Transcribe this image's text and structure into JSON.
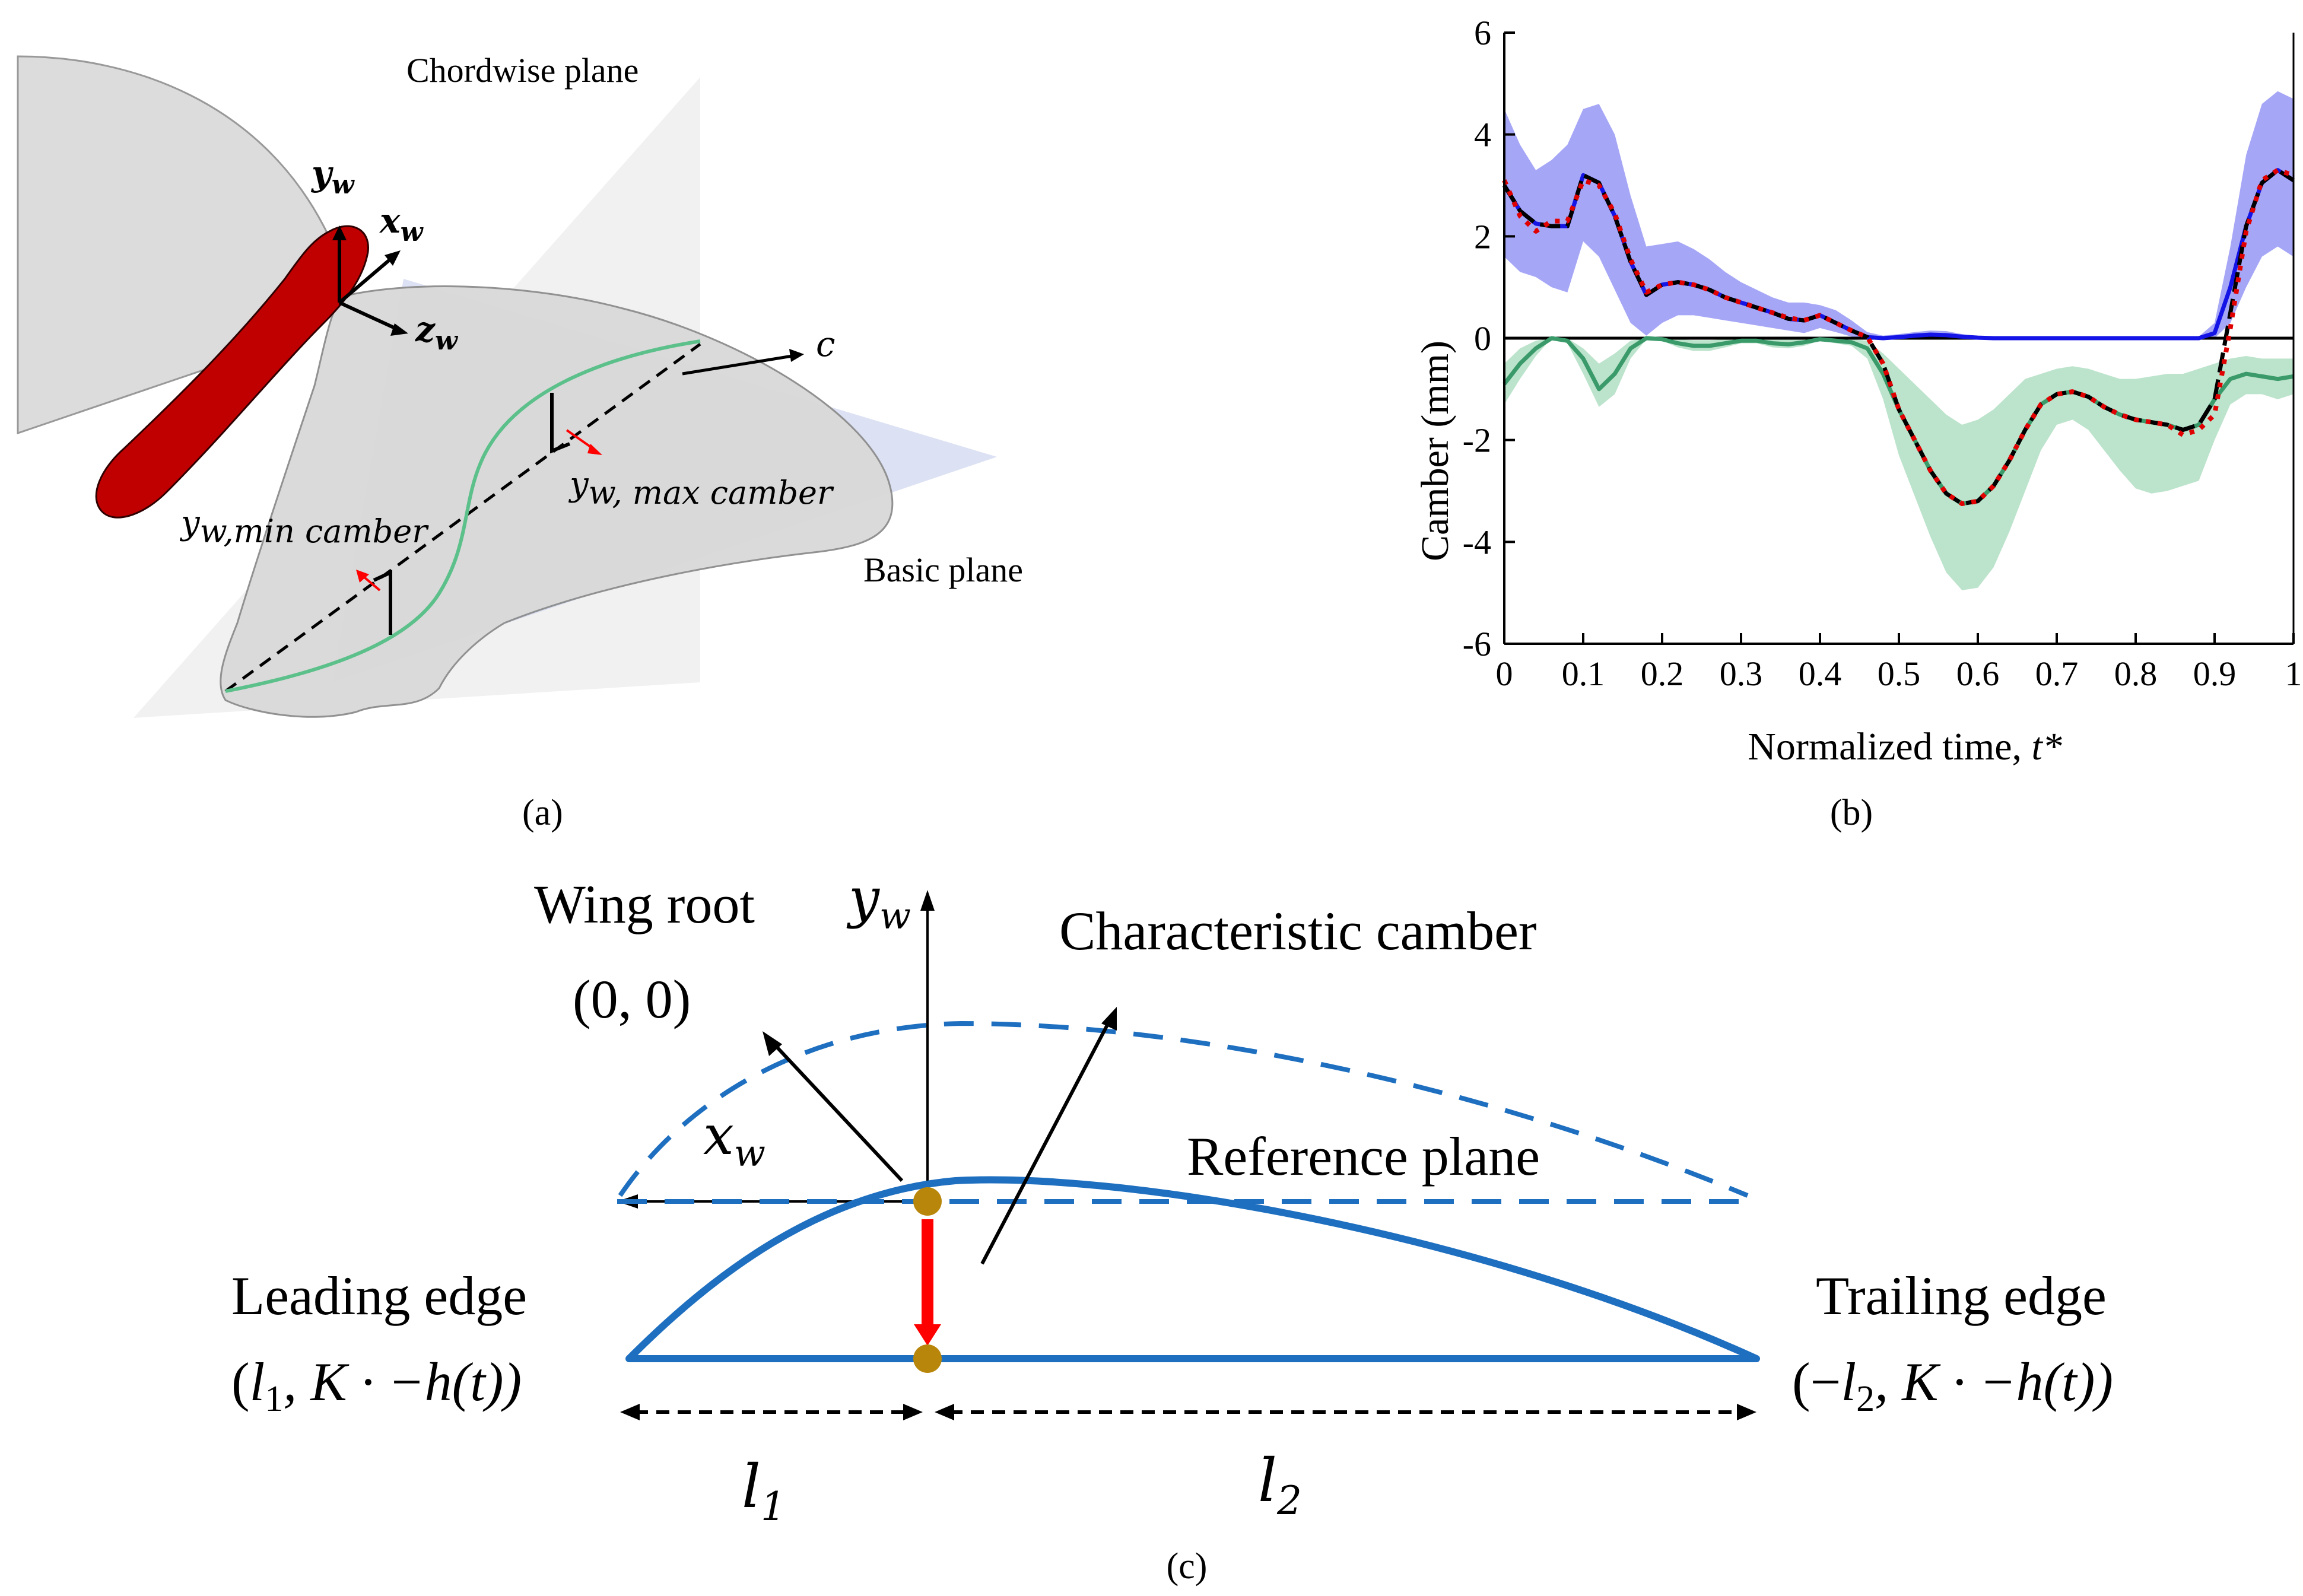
{
  "panel_a": {
    "caption": "(a)",
    "labels": {
      "chordwise_plane": "Chordwise plane",
      "basic_plane": "Basic plane",
      "y_w": "y",
      "y_w_sub": "w",
      "x_w": "x",
      "x_w_sub": "w",
      "z_w": "z",
      "z_w_sub": "w",
      "c": "c",
      "max_camber": "y",
      "max_camber_sub": "w, max camber",
      "min_camber": "y",
      "min_camber_sub": "w,min camber"
    },
    "colors": {
      "body": "#c00000",
      "chord_curve": "#5cc08a",
      "arrow_red": "#ff0000",
      "plane_grey": "#d9d9d9",
      "plane_blue": "#d6dcf2"
    }
  },
  "panel_b": {
    "caption": "(b)",
    "chart_data": {
      "type": "line",
      "title": "",
      "xlabel": "Normalized time, ",
      "xlabel_var": "t*",
      "ylabel": "Camber (mm)",
      "xlim": [
        0,
        1
      ],
      "ylim": [
        -6,
        6
      ],
      "x_ticks": [
        "0",
        "0.1",
        "0.2",
        "0.3",
        "0.4",
        "0.5",
        "0.6",
        "0.7",
        "0.8",
        "0.9",
        "1"
      ],
      "y_ticks": [
        "6",
        "4",
        "2",
        "0",
        "-2",
        "-4",
        "-6"
      ],
      "x_tick_values": [
        0,
        0.1,
        0.2,
        0.3,
        0.4,
        0.5,
        0.6,
        0.7,
        0.8,
        0.9,
        1
      ],
      "y_tick_values": [
        6,
        4,
        2,
        0,
        -2,
        -4,
        -6
      ],
      "series": [
        {
          "name": "max camber mean",
          "color": "#1414e6",
          "x": [
            0,
            0.02,
            0.04,
            0.06,
            0.08,
            0.1,
            0.12,
            0.14,
            0.16,
            0.18,
            0.2,
            0.22,
            0.24,
            0.26,
            0.28,
            0.3,
            0.32,
            0.34,
            0.36,
            0.38,
            0.4,
            0.42,
            0.44,
            0.46,
            0.48,
            0.5,
            0.52,
            0.54,
            0.56,
            0.58,
            0.6,
            0.62,
            0.64,
            0.66,
            0.68,
            0.7,
            0.72,
            0.74,
            0.76,
            0.78,
            0.8,
            0.82,
            0.84,
            0.86,
            0.88,
            0.9,
            0.92,
            0.94,
            0.96,
            0.98,
            1
          ],
          "values": [
            3.0,
            2.5,
            2.25,
            2.2,
            2.2,
            3.2,
            3.05,
            2.4,
            1.5,
            0.85,
            1.05,
            1.1,
            1.05,
            0.95,
            0.8,
            0.7,
            0.6,
            0.5,
            0.38,
            0.35,
            0.45,
            0.3,
            0.15,
            0.02,
            0.0,
            0.02,
            0.05,
            0.07,
            0.06,
            0.03,
            0.01,
            0.0,
            0.0,
            0.0,
            0.0,
            0.0,
            0.0,
            0.0,
            0.0,
            0.0,
            0.0,
            0.0,
            0.0,
            0.0,
            0.0,
            0.1,
            1.0,
            2.2,
            3.05,
            3.3,
            3.1
          ]
        },
        {
          "name": "max camber upper bound",
          "color": "#3c3cf0",
          "x": [
            0,
            0.02,
            0.04,
            0.06,
            0.08,
            0.1,
            0.12,
            0.14,
            0.16,
            0.18,
            0.2,
            0.22,
            0.24,
            0.26,
            0.28,
            0.3,
            0.32,
            0.34,
            0.36,
            0.38,
            0.4,
            0.42,
            0.44,
            0.46,
            0.48,
            0.5,
            0.52,
            0.54,
            0.56,
            0.58,
            0.6,
            0.62,
            0.64,
            0.66,
            0.68,
            0.7,
            0.72,
            0.74,
            0.76,
            0.78,
            0.8,
            0.82,
            0.84,
            0.86,
            0.88,
            0.9,
            0.92,
            0.94,
            0.96,
            0.98,
            1
          ],
          "values": [
            4.5,
            3.8,
            3.3,
            3.5,
            3.8,
            4.5,
            4.6,
            4.0,
            2.8,
            1.8,
            1.85,
            1.9,
            1.75,
            1.55,
            1.3,
            1.1,
            0.95,
            0.8,
            0.7,
            0.7,
            0.65,
            0.55,
            0.35,
            0.12,
            0.05,
            0.08,
            0.12,
            0.15,
            0.14,
            0.08,
            0.03,
            0.02,
            0.02,
            0.02,
            0.02,
            0.02,
            0.02,
            0.02,
            0.02,
            0.02,
            0.02,
            0.02,
            0.02,
            0.02,
            0.03,
            0.3,
            1.8,
            3.6,
            4.6,
            4.85,
            4.7
          ]
        },
        {
          "name": "max camber lower bound",
          "color": "#3c3cf0",
          "x": [
            0,
            0.02,
            0.04,
            0.06,
            0.08,
            0.1,
            0.12,
            0.14,
            0.16,
            0.18,
            0.2,
            0.22,
            0.24,
            0.26,
            0.28,
            0.3,
            0.32,
            0.34,
            0.36,
            0.38,
            0.4,
            0.42,
            0.44,
            0.46,
            0.48,
            0.5,
            0.52,
            0.54,
            0.56,
            0.58,
            0.6,
            0.62,
            0.64,
            0.66,
            0.68,
            0.7,
            0.72,
            0.74,
            0.76,
            0.78,
            0.8,
            0.82,
            0.84,
            0.86,
            0.88,
            0.9,
            0.92,
            0.94,
            0.96,
            0.98,
            1
          ],
          "values": [
            1.6,
            1.3,
            1.2,
            1.0,
            0.9,
            1.9,
            1.6,
            0.95,
            0.3,
            0.05,
            0.3,
            0.45,
            0.45,
            0.4,
            0.35,
            0.3,
            0.25,
            0.2,
            0.15,
            0.1,
            0.2,
            0.12,
            0.03,
            0.0,
            0.0,
            0.0,
            0.0,
            0.0,
            0.0,
            0.0,
            0.0,
            0.0,
            0.0,
            0.0,
            0.0,
            0.0,
            0.0,
            0.0,
            0.0,
            0.0,
            0.0,
            0.0,
            0.0,
            0.0,
            0.0,
            0.0,
            0.3,
            1.0,
            1.6,
            1.8,
            1.6
          ]
        },
        {
          "name": "min camber mean",
          "color": "#3a9a6a",
          "x": [
            0,
            0.02,
            0.04,
            0.06,
            0.08,
            0.1,
            0.12,
            0.14,
            0.16,
            0.18,
            0.2,
            0.22,
            0.24,
            0.26,
            0.28,
            0.3,
            0.32,
            0.34,
            0.36,
            0.38,
            0.4,
            0.42,
            0.44,
            0.46,
            0.48,
            0.5,
            0.52,
            0.54,
            0.56,
            0.58,
            0.6,
            0.62,
            0.64,
            0.66,
            0.68,
            0.7,
            0.72,
            0.74,
            0.76,
            0.78,
            0.8,
            0.82,
            0.84,
            0.86,
            0.88,
            0.9,
            0.92,
            0.94,
            0.96,
            0.98,
            1
          ],
          "values": [
            -0.9,
            -0.5,
            -0.2,
            0.0,
            -0.05,
            -0.4,
            -1.0,
            -0.7,
            -0.2,
            0.0,
            -0.02,
            -0.1,
            -0.15,
            -0.15,
            -0.1,
            -0.05,
            -0.05,
            -0.1,
            -0.12,
            -0.08,
            -0.02,
            -0.05,
            -0.08,
            -0.2,
            -0.7,
            -1.4,
            -2.0,
            -2.6,
            -3.05,
            -3.25,
            -3.2,
            -2.9,
            -2.4,
            -1.8,
            -1.3,
            -1.1,
            -1.05,
            -1.15,
            -1.35,
            -1.5,
            -1.6,
            -1.65,
            -1.7,
            -1.8,
            -1.7,
            -1.2,
            -0.8,
            -0.7,
            -0.75,
            -0.8,
            -0.75
          ]
        },
        {
          "name": "min camber upper bound",
          "color": "#8fd0a8",
          "x": [
            0,
            0.02,
            0.04,
            0.06,
            0.08,
            0.1,
            0.12,
            0.14,
            0.16,
            0.18,
            0.2,
            0.22,
            0.24,
            0.26,
            0.28,
            0.3,
            0.32,
            0.34,
            0.36,
            0.38,
            0.4,
            0.42,
            0.44,
            0.46,
            0.48,
            0.5,
            0.52,
            0.54,
            0.56,
            0.58,
            0.6,
            0.62,
            0.64,
            0.66,
            0.68,
            0.7,
            0.72,
            0.74,
            0.76,
            0.78,
            0.8,
            0.82,
            0.84,
            0.86,
            0.88,
            0.9,
            0.92,
            0.94,
            0.96,
            0.98,
            1
          ],
          "values": [
            -0.5,
            -0.2,
            -0.05,
            0.0,
            0.0,
            -0.2,
            -0.5,
            -0.3,
            -0.05,
            0.0,
            0.0,
            -0.02,
            -0.04,
            -0.04,
            -0.02,
            0.0,
            0.0,
            -0.02,
            -0.03,
            -0.01,
            0.0,
            -0.01,
            -0.02,
            -0.05,
            -0.3,
            -0.6,
            -0.9,
            -1.2,
            -1.5,
            -1.7,
            -1.6,
            -1.4,
            -1.1,
            -0.8,
            -0.7,
            -0.6,
            -0.55,
            -0.6,
            -0.7,
            -0.8,
            -0.8,
            -0.75,
            -0.7,
            -0.7,
            -0.6,
            -0.5,
            -0.4,
            -0.35,
            -0.4,
            -0.4,
            -0.4
          ]
        },
        {
          "name": "min camber lower bound",
          "color": "#8fd0a8",
          "x": [
            0,
            0.02,
            0.04,
            0.06,
            0.08,
            0.1,
            0.12,
            0.14,
            0.16,
            0.18,
            0.2,
            0.22,
            0.24,
            0.26,
            0.28,
            0.3,
            0.32,
            0.34,
            0.36,
            0.38,
            0.4,
            0.42,
            0.44,
            0.46,
            0.48,
            0.5,
            0.52,
            0.54,
            0.56,
            0.58,
            0.6,
            0.62,
            0.64,
            0.66,
            0.68,
            0.7,
            0.72,
            0.74,
            0.76,
            0.78,
            0.8,
            0.82,
            0.84,
            0.86,
            0.88,
            0.9,
            0.92,
            0.94,
            0.96,
            0.98,
            1
          ],
          "values": [
            -1.3,
            -0.8,
            -0.35,
            0.0,
            -0.1,
            -0.7,
            -1.35,
            -1.1,
            -0.4,
            -0.02,
            -0.05,
            -0.18,
            -0.25,
            -0.25,
            -0.18,
            -0.1,
            -0.1,
            -0.18,
            -0.2,
            -0.15,
            -0.05,
            -0.1,
            -0.15,
            -0.4,
            -1.2,
            -2.3,
            -3.1,
            -3.9,
            -4.6,
            -4.95,
            -4.9,
            -4.5,
            -3.8,
            -3.0,
            -2.2,
            -1.7,
            -1.6,
            -1.8,
            -2.2,
            -2.6,
            -2.95,
            -3.05,
            -3.0,
            -2.9,
            -2.8,
            -2.0,
            -1.3,
            -1.1,
            -1.1,
            -1.2,
            -1.1
          ]
        },
        {
          "name": "characteristic camber fit",
          "color": "#000000",
          "dash": "long",
          "x": [
            0,
            0.02,
            0.04,
            0.06,
            0.08,
            0.1,
            0.12,
            0.14,
            0.16,
            0.18,
            0.2,
            0.22,
            0.24,
            0.26,
            0.28,
            0.3,
            0.32,
            0.34,
            0.36,
            0.38,
            0.4,
            0.42,
            0.44,
            0.46,
            0.48,
            0.5,
            0.52,
            0.54,
            0.56,
            0.58,
            0.6,
            0.62,
            0.64,
            0.66,
            0.68,
            0.7,
            0.72,
            0.74,
            0.76,
            0.78,
            0.8,
            0.82,
            0.84,
            0.86,
            0.88,
            0.9,
            0.92,
            0.94,
            0.96,
            0.98,
            1
          ],
          "values": [
            3.0,
            2.5,
            2.25,
            2.2,
            2.2,
            3.2,
            3.05,
            2.4,
            1.5,
            0.85,
            1.05,
            1.1,
            1.05,
            0.95,
            0.8,
            0.7,
            0.6,
            0.5,
            0.38,
            0.35,
            0.45,
            0.3,
            0.15,
            0.02,
            -0.5,
            -1.4,
            -2.0,
            -2.6,
            -3.05,
            -3.25,
            -3.2,
            -2.9,
            -2.4,
            -1.8,
            -1.3,
            -1.1,
            -1.05,
            -1.15,
            -1.35,
            -1.5,
            -1.6,
            -1.65,
            -1.7,
            -1.8,
            -1.7,
            -1.2,
            0.5,
            2.2,
            3.05,
            3.3,
            3.1
          ]
        },
        {
          "name": "model fit",
          "color": "#e00000",
          "dash": "dot",
          "x": [
            0,
            0.02,
            0.04,
            0.06,
            0.08,
            0.1,
            0.12,
            0.14,
            0.16,
            0.18,
            0.2,
            0.22,
            0.24,
            0.26,
            0.28,
            0.3,
            0.32,
            0.34,
            0.36,
            0.38,
            0.4,
            0.42,
            0.44,
            0.46,
            0.48,
            0.5,
            0.52,
            0.54,
            0.56,
            0.58,
            0.6,
            0.62,
            0.64,
            0.66,
            0.68,
            0.7,
            0.72,
            0.74,
            0.76,
            0.78,
            0.8,
            0.82,
            0.84,
            0.86,
            0.88,
            0.9,
            0.92,
            0.94,
            0.96,
            0.98,
            1
          ],
          "values": [
            3.1,
            2.4,
            2.1,
            2.3,
            2.3,
            3.1,
            3.0,
            2.45,
            1.55,
            0.9,
            1.05,
            1.1,
            1.05,
            0.95,
            0.8,
            0.7,
            0.6,
            0.5,
            0.4,
            0.35,
            0.45,
            0.3,
            0.15,
            0.02,
            -0.5,
            -1.4,
            -2.0,
            -2.6,
            -3.05,
            -3.25,
            -3.2,
            -2.9,
            -2.4,
            -1.8,
            -1.3,
            -1.1,
            -1.05,
            -1.15,
            -1.35,
            -1.5,
            -1.6,
            -1.65,
            -1.7,
            -1.9,
            -1.8,
            -1.5,
            0.2,
            2.1,
            3.1,
            3.3,
            3.2
          ]
        }
      ]
    }
  },
  "panel_c": {
    "caption": "(c)",
    "labels": {
      "wing_root": "Wing root",
      "origin": "(0, 0)",
      "y_w": "y",
      "y_w_sub": "w",
      "x_w": "x",
      "x_w_sub": "w",
      "characteristic_camber": "Characteristic camber",
      "reference_plane": "Reference plane",
      "leading_edge": "Leading edge",
      "leading_edge_coord_open": "(",
      "leading_edge_l": "l",
      "leading_edge_l_sub": "1",
      "leading_edge_coord_rest": ", K · −h(t))",
      "trailing_edge": "Trailing edge",
      "trailing_edge_coord_open": "(−",
      "trailing_edge_l": "l",
      "trailing_edge_l_sub": "2",
      "trailing_edge_coord_rest": ", K · −h(t))",
      "l1": "l",
      "l1_sub": "1",
      "l2": "l",
      "l2_sub": "2"
    },
    "colors": {
      "profile": "#1e6fc0",
      "dot": "#b8860b",
      "arrow": "#ff0000"
    }
  }
}
